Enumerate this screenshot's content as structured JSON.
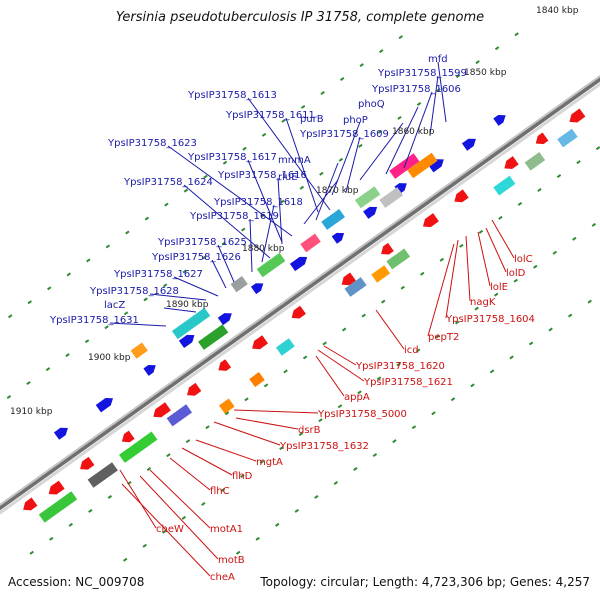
{
  "title": "Yersinia pseudotuberculosis IP 31758, complete genome",
  "accession": "Accession: NC_009708",
  "summary": "Topology: circular; Length: 4,723,306 bp; Genes: 4,257",
  "colors": {
    "forward_label": "#1a1aa8",
    "reverse_label": "#cc1111",
    "backbone_dark": "#6f6f6f",
    "backbone_light": "#c4c4c4",
    "tick": "#2e8b2e"
  },
  "kbp_labels": [
    "1840 kbp",
    "1850 kbp",
    "1860 kbp",
    "1870 kbp",
    "1880 kbp",
    "1890 kbp",
    "1900 kbp",
    "1910 kbp"
  ],
  "forward_genes": [
    "mfd",
    "YpsIP31758_1599",
    "YpsIP31758_1606",
    "YpsIP31758_1613",
    "purB",
    "phoQ",
    "YpsIP31758_1611",
    "phoP",
    "YpsIP31758_1609",
    "mnmA",
    "YpsIP31758_1623",
    "YpsIP31758_1617",
    "rluE",
    "YpsIP31758_1616",
    "YpsIP31758_1624",
    "YpsIP31758_1618",
    "YpsIP31758_1619",
    "YpsIP31758_1625",
    "YpsIP31758_1626",
    "YpsIP31758_1627",
    "YpsIP31758_1628",
    "lacZ",
    "YpsIP31758_1631"
  ],
  "reverse_genes": [
    "lolC",
    "lolD",
    "lolE",
    "nagK",
    "YpsIP31758_1604",
    "pepT2",
    "icd",
    "YpsIP31758_1620",
    "YpsIP31758_1621",
    "appA",
    "YpsIP31758_5000",
    "dsrB",
    "YpsIP31758_1632",
    "mgtA",
    "flhD",
    "flhC",
    "motA1",
    "cheW",
    "motB",
    "cheA"
  ]
}
